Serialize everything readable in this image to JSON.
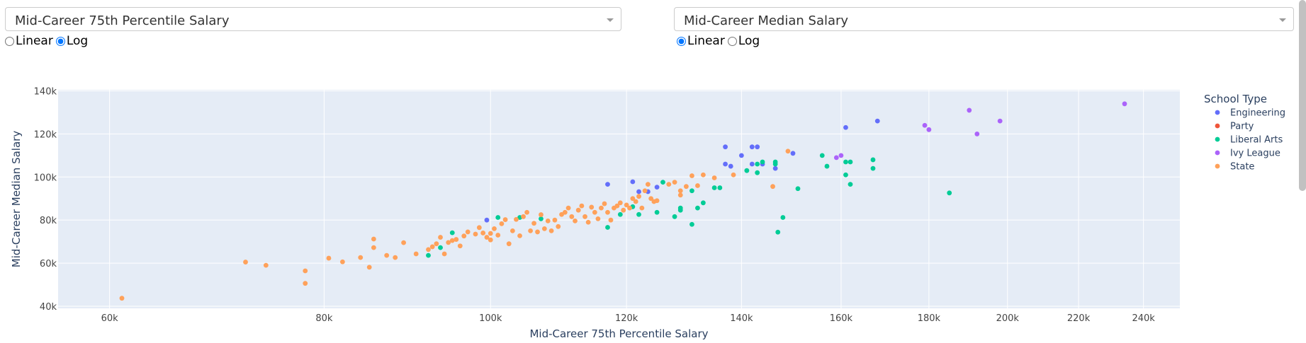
{
  "controls": {
    "x_dropdown": {
      "value": "Mid-Career 75th Percentile Salary"
    },
    "y_dropdown": {
      "value": "Mid-Career Median Salary"
    },
    "x_scale": {
      "options": [
        "Linear",
        "Log"
      ],
      "selected": "Log"
    },
    "y_scale": {
      "options": [
        "Linear",
        "Log"
      ],
      "selected": "Linear"
    }
  },
  "chart_data": {
    "type": "scatter",
    "xlabel": "Mid-Career 75th Percentile Salary",
    "ylabel": "Mid-Career Median Salary",
    "x_scale": "log",
    "y_scale": "linear",
    "xlim": [
      56000,
      252000
    ],
    "ylim": [
      39000,
      140500
    ],
    "x_ticks": [
      {
        "value": 60000,
        "label": "60k"
      },
      {
        "value": 80000,
        "label": "80k"
      },
      {
        "value": 100000,
        "label": "100k"
      },
      {
        "value": 120000,
        "label": "120k"
      },
      {
        "value": 140000,
        "label": "140k"
      },
      {
        "value": 160000,
        "label": "160k"
      },
      {
        "value": 180000,
        "label": "180k"
      },
      {
        "value": 200000,
        "label": "200k"
      },
      {
        "value": 220000,
        "label": "220k"
      },
      {
        "value": 240000,
        "label": "240k"
      }
    ],
    "y_ticks": [
      {
        "value": 40000,
        "label": "40k"
      },
      {
        "value": 60000,
        "label": "60k"
      },
      {
        "value": 80000,
        "label": "80k"
      },
      {
        "value": 100000,
        "label": "100k"
      },
      {
        "value": 120000,
        "label": "120k"
      },
      {
        "value": 140000,
        "label": "140k"
      }
    ],
    "grid": true,
    "legend": {
      "title": "School Type",
      "position": "right"
    },
    "series": [
      {
        "name": "Engineering",
        "color": "#636efa",
        "points": [
          [
            99500,
            80000
          ],
          [
            117000,
            96600
          ],
          [
            121000,
            97800
          ],
          [
            122000,
            93200
          ],
          [
            123500,
            93200
          ],
          [
            125000,
            95300
          ],
          [
            137000,
            114000
          ],
          [
            137000,
            106000
          ],
          [
            138000,
            105000
          ],
          [
            140000,
            110000
          ],
          [
            142000,
            106000
          ],
          [
            142000,
            114000
          ],
          [
            143000,
            114000
          ],
          [
            144000,
            106000
          ],
          [
            146500,
            104000
          ],
          [
            150000,
            111000
          ],
          [
            161000,
            123000
          ],
          [
            168000,
            126000
          ]
        ]
      },
      {
        "name": "Party",
        "color": "#ef553b",
        "points": []
      },
      {
        "name": "Liberal Arts",
        "color": "#00cc96",
        "points": [
          [
            92000,
            63600
          ],
          [
            93500,
            67200
          ],
          [
            95000,
            74100
          ],
          [
            101000,
            81200
          ],
          [
            104000,
            81200
          ],
          [
            107000,
            80600
          ],
          [
            117000,
            76600
          ],
          [
            119000,
            82600
          ],
          [
            121000,
            86200
          ],
          [
            122000,
            82600
          ],
          [
            125000,
            83600
          ],
          [
            126000,
            97600
          ],
          [
            128000,
            81600
          ],
          [
            129000,
            84600
          ],
          [
            129000,
            85600
          ],
          [
            131000,
            78000
          ],
          [
            131000,
            93600
          ],
          [
            132000,
            85600
          ],
          [
            133000,
            88000
          ],
          [
            135000,
            95000
          ],
          [
            136000,
            95000
          ],
          [
            141000,
            103000
          ],
          [
            143000,
            102000
          ],
          [
            143000,
            106000
          ],
          [
            144000,
            107000
          ],
          [
            146500,
            106000
          ],
          [
            146500,
            107000
          ],
          [
            147000,
            74400
          ],
          [
            148000,
            81200
          ],
          [
            151000,
            94600
          ],
          [
            156000,
            110000
          ],
          [
            157000,
            105000
          ],
          [
            161000,
            101000
          ],
          [
            161000,
            107000
          ],
          [
            162000,
            96600
          ],
          [
            162000,
            107000
          ],
          [
            167000,
            104000
          ],
          [
            167000,
            108000
          ],
          [
            185000,
            92600
          ]
        ]
      },
      {
        "name": "Ivy League",
        "color": "#ab63fa",
        "points": [
          [
            159000,
            109000
          ],
          [
            160000,
            110000
          ],
          [
            179000,
            124000
          ],
          [
            180000,
            122000
          ],
          [
            190000,
            131000
          ],
          [
            192000,
            120000
          ],
          [
            198000,
            126000
          ],
          [
            234000,
            134000
          ]
        ]
      },
      {
        "name": "State",
        "color": "#ffa15a",
        "points": [
          [
            61000,
            43700
          ],
          [
            72000,
            60500
          ],
          [
            74000,
            59000
          ],
          [
            78000,
            56400
          ],
          [
            78000,
            50600
          ],
          [
            80500,
            62300
          ],
          [
            82000,
            60600
          ],
          [
            84000,
            62600
          ],
          [
            85000,
            58100
          ],
          [
            85500,
            67200
          ],
          [
            85500,
            71200
          ],
          [
            87000,
            63600
          ],
          [
            88000,
            62600
          ],
          [
            89000,
            69500
          ],
          [
            90500,
            64300
          ],
          [
            92000,
            66300
          ],
          [
            92500,
            67600
          ],
          [
            93000,
            69000
          ],
          [
            93500,
            72000
          ],
          [
            94000,
            64300
          ],
          [
            94500,
            69600
          ],
          [
            95000,
            70500
          ],
          [
            95500,
            71000
          ],
          [
            96000,
            68000
          ],
          [
            96500,
            72600
          ],
          [
            97000,
            74500
          ],
          [
            98000,
            73500
          ],
          [
            98500,
            76500
          ],
          [
            99000,
            74000
          ],
          [
            99500,
            72000
          ],
          [
            100000,
            70800
          ],
          [
            100000,
            73800
          ],
          [
            100500,
            76000
          ],
          [
            101000,
            73000
          ],
          [
            101500,
            78300
          ],
          [
            102000,
            80200
          ],
          [
            102500,
            69000
          ],
          [
            103000,
            75000
          ],
          [
            103500,
            80300
          ],
          [
            104000,
            72700
          ],
          [
            104500,
            81600
          ],
          [
            105000,
            83600
          ],
          [
            105500,
            75000
          ],
          [
            106000,
            78500
          ],
          [
            106500,
            74500
          ],
          [
            107000,
            82500
          ],
          [
            107500,
            76000
          ],
          [
            108000,
            79600
          ],
          [
            108500,
            75000
          ],
          [
            109000,
            80000
          ],
          [
            109500,
            77000
          ],
          [
            110000,
            82600
          ],
          [
            110500,
            83600
          ],
          [
            111000,
            85600
          ],
          [
            111500,
            81600
          ],
          [
            112000,
            79600
          ],
          [
            112500,
            84600
          ],
          [
            113000,
            86600
          ],
          [
            113500,
            81600
          ],
          [
            114000,
            79000
          ],
          [
            114500,
            86000
          ],
          [
            115000,
            83600
          ],
          [
            115500,
            80600
          ],
          [
            116000,
            85600
          ],
          [
            116500,
            87600
          ],
          [
            117000,
            83600
          ],
          [
            117500,
            80000
          ],
          [
            118000,
            85600
          ],
          [
            118500,
            86600
          ],
          [
            119000,
            88000
          ],
          [
            119500,
            84600
          ],
          [
            120000,
            87000
          ],
          [
            120500,
            85600
          ],
          [
            121000,
            90000
          ],
          [
            121500,
            88600
          ],
          [
            122000,
            91000
          ],
          [
            122500,
            85600
          ],
          [
            123000,
            93600
          ],
          [
            123500,
            96600
          ],
          [
            124000,
            90000
          ],
          [
            124500,
            88600
          ],
          [
            125000,
            89000
          ],
          [
            127000,
            96600
          ],
          [
            128000,
            97600
          ],
          [
            129000,
            91600
          ],
          [
            129000,
            93600
          ],
          [
            130000,
            95600
          ],
          [
            131000,
            100600
          ],
          [
            132000,
            96000
          ],
          [
            133000,
            101000
          ],
          [
            135000,
            99600
          ],
          [
            138500,
            101000
          ],
          [
            146000,
            95600
          ],
          [
            149000,
            112000
          ]
        ]
      }
    ]
  }
}
